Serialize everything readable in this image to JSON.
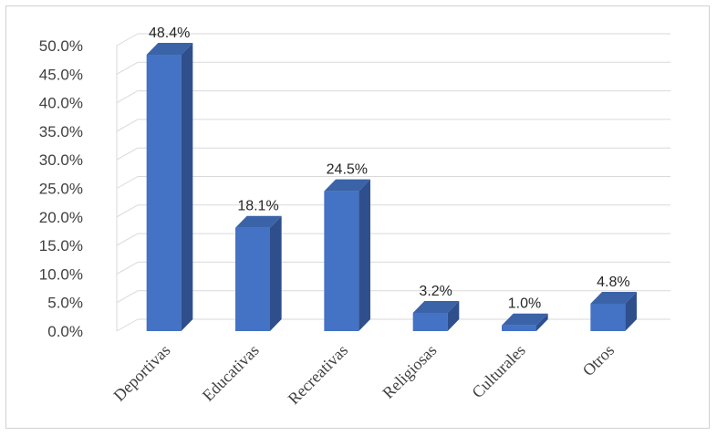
{
  "chart_data": {
    "type": "bar",
    "categories": [
      "Deportivas",
      "Educativas",
      "Recreativas",
      "Religiosas",
      "Culturales",
      "Otros"
    ],
    "values": [
      48.4,
      18.1,
      24.5,
      3.2,
      1.0,
      4.8
    ],
    "data_labels": [
      "48.4%",
      "18.1%",
      "24.5%",
      "3.2%",
      "1.0%",
      "4.8%"
    ],
    "y_ticks": [
      "0.0%",
      "5.0%",
      "10.0%",
      "15.0%",
      "20.0%",
      "25.0%",
      "30.0%",
      "35.0%",
      "40.0%",
      "45.0%",
      "50.0%"
    ],
    "ylim": [
      0,
      50
    ],
    "grid": true,
    "style": "3d-column",
    "colors": {
      "bar_front": "#4472C4",
      "bar_side": "#2F4F8C",
      "bar_top": "#3A63A8",
      "grid": "#d9d9d9"
    }
  }
}
